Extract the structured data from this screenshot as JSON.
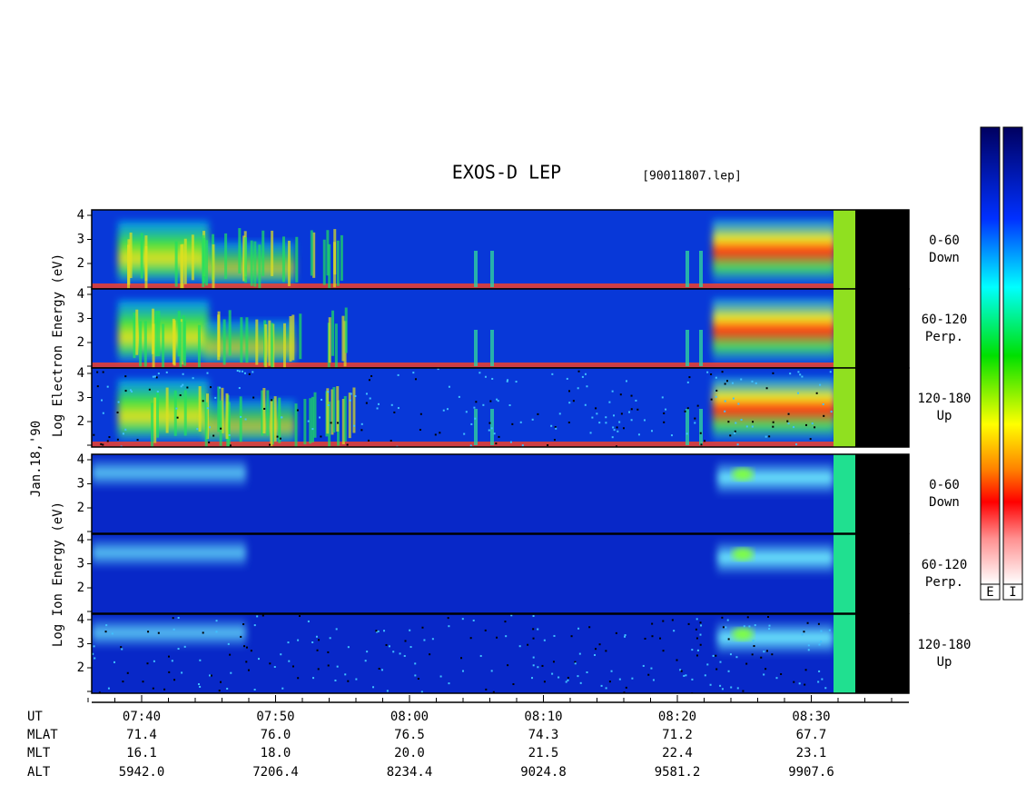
{
  "title": "EXOS-D LEP",
  "file": "[90011807.lep]",
  "date_label": "Jan.18,'90",
  "electron_axis_label": "Log  Electron  Energy (eV)",
  "ion_axis_label": "Log  Ion  Energy (eV)",
  "energy_ticks": [
    "2",
    "3",
    "4"
  ],
  "panels": [
    [
      "0-60",
      "Down"
    ],
    [
      "60-120",
      "Perp."
    ],
    [
      "120-180",
      "Up"
    ],
    [
      "0-60",
      "Down"
    ],
    [
      "60-120",
      "Perp."
    ],
    [
      "120-180",
      "Up"
    ]
  ],
  "colorbar_labels": [
    "E",
    "I"
  ],
  "orbit_table": {
    "row_labels": [
      "UT",
      "MLAT",
      "MLT",
      "ALT"
    ],
    "columns": [
      [
        "07:40",
        "71.4",
        "16.1",
        "5942.0"
      ],
      [
        "07:50",
        "76.0",
        "18.0",
        "7206.4"
      ],
      [
        "08:00",
        "76.5",
        "20.0",
        "8234.4"
      ],
      [
        "08:10",
        "74.3",
        "21.5",
        "9024.8"
      ],
      [
        "08:20",
        "71.2",
        "22.4",
        "9581.2"
      ],
      [
        "08:30",
        "67.7",
        "23.1",
        "9907.6"
      ]
    ]
  }
}
